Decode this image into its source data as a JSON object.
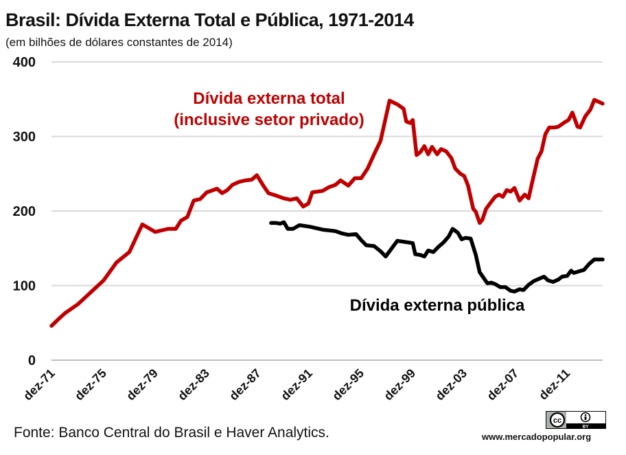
{
  "title": "Brasil: Dívida Externa Total e Pública, 1971-2014",
  "subtitle": "(em bilhões de dólares constantes de 2014)",
  "source": "Fonte: Banco Central do Brasil e Haver Analytics.",
  "site": "www.mercadopopular.org",
  "license_badge": {
    "label": "cc",
    "by": "BY"
  },
  "colors": {
    "total": "#c00000",
    "publica": "#000000",
    "grid": "#d9d9d9"
  },
  "chart_data": {
    "type": "line",
    "title": "Brasil: Dívida Externa Total e Pública, 1971-2014",
    "ylim": [
      0,
      400
    ],
    "yticks": [
      0,
      100,
      200,
      300,
      400
    ],
    "xlim": [
      1971.95,
      2014.75
    ],
    "xticks": [
      {
        "label": "dez-71",
        "x": 1971.95
      },
      {
        "label": "dez-75",
        "x": 1975.95
      },
      {
        "label": "dez-79",
        "x": 1979.95
      },
      {
        "label": "dez-83",
        "x": 1983.95
      },
      {
        "label": "dez-87",
        "x": 1987.95
      },
      {
        "label": "dez-91",
        "x": 1991.95
      },
      {
        "label": "dez-95",
        "x": 1995.95
      },
      {
        "label": "dez-99",
        "x": 1999.95
      },
      {
        "label": "dez-03",
        "x": 2003.95
      },
      {
        "label": "dez-07",
        "x": 2007.95
      },
      {
        "label": "dez-11",
        "x": 2011.95
      }
    ],
    "grid": true,
    "legend": "none",
    "annotations": [
      {
        "series": "total",
        "lines": [
          "Dívida externa total",
          "(inclusive setor privado)"
        ]
      },
      {
        "series": "publica",
        "lines": [
          "Dívida externa pública"
        ]
      }
    ],
    "series": [
      {
        "id": "total",
        "name": "Dívida externa total (inclusive setor privado)",
        "points": [
          [
            1971.95,
            46
          ],
          [
            1972.5,
            55
          ],
          [
            1973.0,
            63
          ],
          [
            1974.0,
            75
          ],
          [
            1975.0,
            91
          ],
          [
            1976.0,
            107
          ],
          [
            1977.0,
            131
          ],
          [
            1978.0,
            145
          ],
          [
            1979.0,
            182
          ],
          [
            1980.0,
            172
          ],
          [
            1981.0,
            176
          ],
          [
            1981.6,
            176
          ],
          [
            1982.0,
            187
          ],
          [
            1982.5,
            192
          ],
          [
            1983.0,
            214
          ],
          [
            1983.5,
            216
          ],
          [
            1984.0,
            225
          ],
          [
            1984.5,
            228
          ],
          [
            1984.8,
            230
          ],
          [
            1985.2,
            224
          ],
          [
            1985.6,
            228
          ],
          [
            1986.0,
            235
          ],
          [
            1986.5,
            239
          ],
          [
            1987.0,
            241
          ],
          [
            1987.5,
            242
          ],
          [
            1987.9,
            248
          ],
          [
            1988.4,
            234
          ],
          [
            1988.8,
            224
          ],
          [
            1989.5,
            220
          ],
          [
            1990.0,
            217
          ],
          [
            1990.5,
            215
          ],
          [
            1991.0,
            217
          ],
          [
            1991.5,
            206
          ],
          [
            1991.9,
            210
          ],
          [
            1992.2,
            225
          ],
          [
            1993.0,
            227
          ],
          [
            1993.5,
            232
          ],
          [
            1994.0,
            235
          ],
          [
            1994.4,
            241
          ],
          [
            1995.0,
            234
          ],
          [
            1995.5,
            244
          ],
          [
            1996.0,
            244
          ],
          [
            1996.5,
            257
          ],
          [
            1997.0,
            276
          ],
          [
            1997.5,
            294
          ],
          [
            1998.2,
            348
          ],
          [
            1998.8,
            343
          ],
          [
            1999.3,
            337
          ],
          [
            1999.5,
            320
          ],
          [
            1999.8,
            318
          ],
          [
            2000.0,
            322
          ],
          [
            2000.3,
            275
          ],
          [
            2000.6,
            279
          ],
          [
            2000.9,
            287
          ],
          [
            2001.2,
            276
          ],
          [
            2001.5,
            286
          ],
          [
            2001.9,
            276
          ],
          [
            2002.2,
            283
          ],
          [
            2002.6,
            280
          ],
          [
            2003.0,
            271
          ],
          [
            2003.3,
            257
          ],
          [
            2003.7,
            250
          ],
          [
            2004.0,
            247
          ],
          [
            2004.3,
            234
          ],
          [
            2004.7,
            203
          ],
          [
            2004.9,
            199
          ],
          [
            2005.2,
            184
          ],
          [
            2005.4,
            188
          ],
          [
            2005.7,
            203
          ],
          [
            2006.0,
            210
          ],
          [
            2006.4,
            219
          ],
          [
            2006.7,
            222
          ],
          [
            2007.0,
            219
          ],
          [
            2007.3,
            228
          ],
          [
            2007.6,
            226
          ],
          [
            2007.9,
            231
          ],
          [
            2008.3,
            214
          ],
          [
            2008.7,
            222
          ],
          [
            2009.0,
            217
          ],
          [
            2009.3,
            240
          ],
          [
            2009.7,
            270
          ],
          [
            2010.0,
            280
          ],
          [
            2010.3,
            303
          ],
          [
            2010.6,
            312
          ],
          [
            2011.0,
            312
          ],
          [
            2011.3,
            313
          ],
          [
            2011.8,
            319
          ],
          [
            2012.1,
            322
          ],
          [
            2012.4,
            332
          ],
          [
            2012.8,
            313
          ],
          [
            2013.0,
            312
          ],
          [
            2013.4,
            327
          ],
          [
            2013.8,
            336
          ],
          [
            2014.1,
            349
          ],
          [
            2014.75,
            344
          ]
        ]
      },
      {
        "id": "publica",
        "name": "Dívida externa pública",
        "points": [
          [
            1989.0,
            184
          ],
          [
            1989.4,
            184
          ],
          [
            1989.7,
            183
          ],
          [
            1990.0,
            185
          ],
          [
            1990.3,
            176
          ],
          [
            1990.7,
            176
          ],
          [
            1991.2,
            181
          ],
          [
            1992.0,
            179
          ],
          [
            1993.0,
            175
          ],
          [
            1994.0,
            173
          ],
          [
            1994.5,
            170
          ],
          [
            1995.0,
            168
          ],
          [
            1995.6,
            169
          ],
          [
            1996.0,
            161
          ],
          [
            1996.4,
            154
          ],
          [
            1997.0,
            153
          ],
          [
            1997.5,
            146
          ],
          [
            1997.9,
            139
          ],
          [
            1998.8,
            160
          ],
          [
            2000.0,
            157
          ],
          [
            2000.2,
            142
          ],
          [
            2000.6,
            141
          ],
          [
            2000.9,
            139
          ],
          [
            2001.2,
            147
          ],
          [
            2001.6,
            145
          ],
          [
            2002.0,
            152
          ],
          [
            2002.4,
            158
          ],
          [
            2002.8,
            166
          ],
          [
            2003.1,
            176
          ],
          [
            2003.5,
            171
          ],
          [
            2003.8,
            162
          ],
          [
            2004.1,
            164
          ],
          [
            2004.5,
            163
          ],
          [
            2004.9,
            141
          ],
          [
            2005.2,
            118
          ],
          [
            2005.6,
            108
          ],
          [
            2005.8,
            103
          ],
          [
            2006.1,
            104
          ],
          [
            2006.4,
            102
          ],
          [
            2006.8,
            98
          ],
          [
            2007.2,
            98
          ],
          [
            2007.6,
            93
          ],
          [
            2007.9,
            92
          ],
          [
            2008.3,
            95
          ],
          [
            2008.6,
            94
          ],
          [
            2009.0,
            101
          ],
          [
            2009.4,
            106
          ],
          [
            2009.8,
            109
          ],
          [
            2010.2,
            112
          ],
          [
            2010.5,
            107
          ],
          [
            2010.9,
            105
          ],
          [
            2011.3,
            108
          ],
          [
            2011.6,
            112
          ],
          [
            2012.0,
            113
          ],
          [
            2012.3,
            120
          ],
          [
            2012.5,
            117
          ],
          [
            2012.9,
            119
          ],
          [
            2013.3,
            121
          ],
          [
            2013.7,
            129
          ],
          [
            2014.1,
            135
          ],
          [
            2014.75,
            135
          ]
        ]
      }
    ]
  }
}
